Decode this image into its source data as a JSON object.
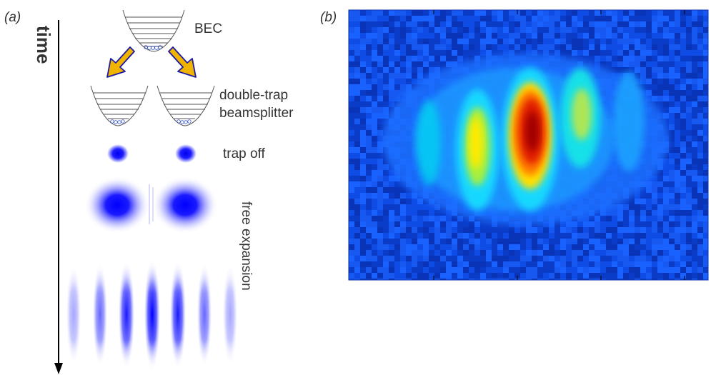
{
  "panel_a": {
    "label": "(a)",
    "time_label": "time",
    "stages": {
      "bec": "BEC",
      "beamsplitter_line1": "double-trap",
      "beamsplitter_line2": "beamsplitter",
      "trap_off": "trap off",
      "free_expansion": "free expansion"
    }
  },
  "panel_b": {
    "label": "(b)"
  },
  "colors": {
    "arrow_fill": "#f0b400",
    "arrow_outline": "#1a1aa6",
    "cloud_blue": "#0000ff",
    "trap_line": "#555555"
  }
}
